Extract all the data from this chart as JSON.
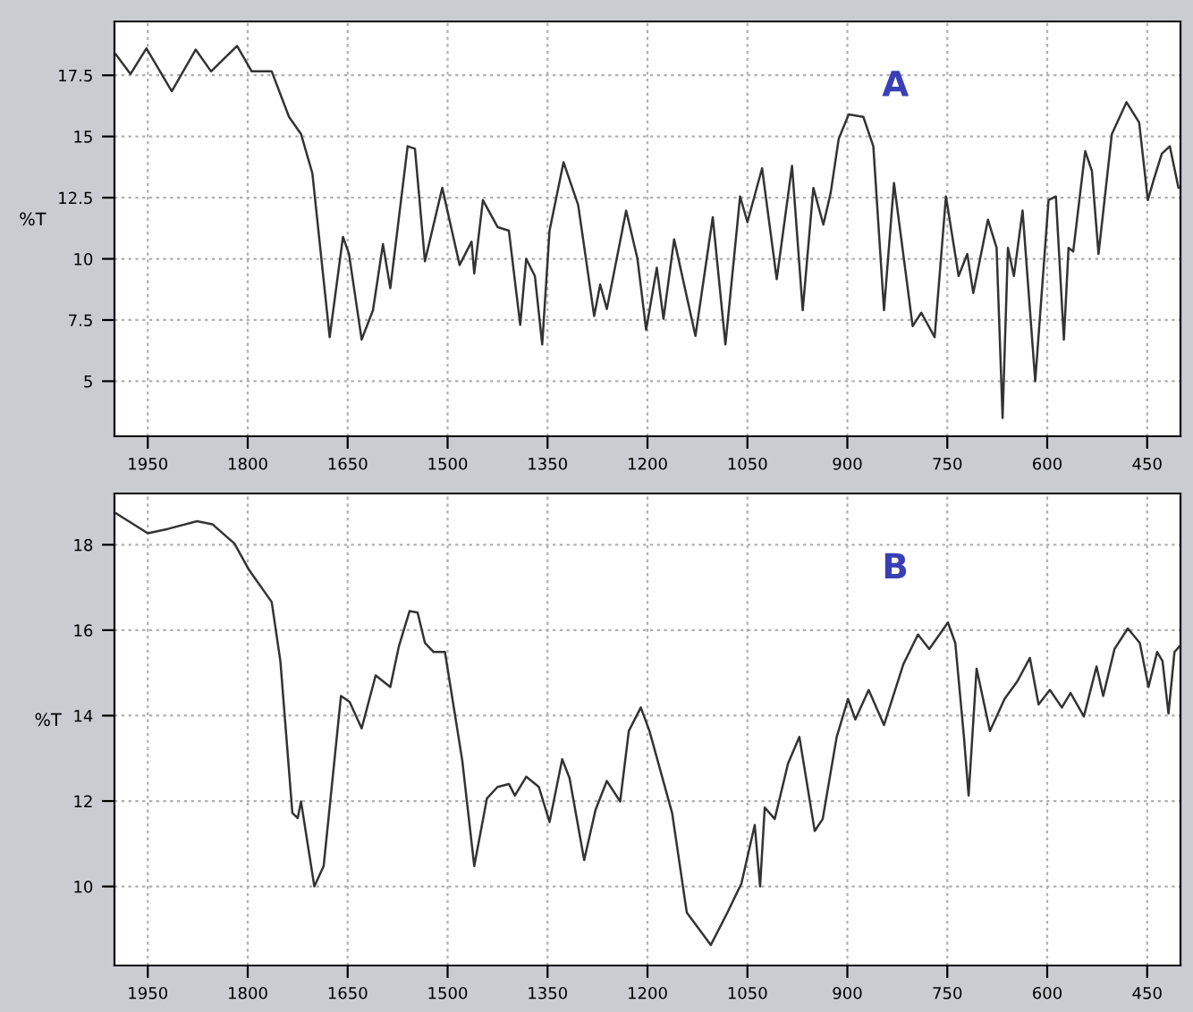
{
  "chart_data": [
    {
      "type": "line",
      "ylabel": "%T",
      "annotations": [
        "A"
      ],
      "xlim": [
        2000,
        400
      ],
      "ylim": [
        2.75,
        19.7
      ],
      "xticks": [
        1950,
        1800,
        1650,
        1500,
        1350,
        1200,
        1050,
        900,
        750,
        600,
        450
      ],
      "yticks": [
        5,
        7.5,
        10,
        12.5,
        15,
        17.5
      ],
      "grid": true,
      "series": [
        {
          "color": "#333333",
          "x": [
            1998,
            1976,
            1952,
            1914,
            1878,
            1855,
            1816,
            1794,
            1764,
            1738,
            1720,
            1703,
            1677,
            1657,
            1648,
            1629,
            1612,
            1597,
            1586,
            1560,
            1549,
            1534,
            1508,
            1482,
            1464,
            1460,
            1447,
            1425,
            1408,
            1391,
            1382,
            1369,
            1358,
            1347,
            1326,
            1304,
            1280,
            1271,
            1261,
            1232,
            1215,
            1202,
            1186,
            1176,
            1160,
            1128,
            1102,
            1083,
            1061,
            1050,
            1028,
            1006,
            983,
            967,
            951,
            936,
            925,
            913,
            898,
            876,
            861,
            845,
            830,
            802,
            789,
            769,
            752,
            733,
            720,
            711,
            689,
            676,
            667,
            659,
            650,
            637,
            618,
            598,
            587,
            575,
            568,
            561,
            543,
            533,
            523,
            503,
            481,
            462,
            449,
            440,
            428,
            416,
            403
          ],
          "values": [
            18.36,
            17.55,
            18.6,
            16.85,
            18.55,
            17.66,
            18.7,
            17.66,
            17.66,
            15.8,
            15.1,
            13.5,
            6.8,
            10.9,
            10.2,
            6.7,
            7.9,
            10.6,
            8.8,
            14.6,
            14.5,
            9.9,
            12.9,
            9.75,
            10.7,
            9.4,
            12.4,
            11.3,
            11.15,
            7.3,
            10.0,
            9.3,
            6.5,
            11.15,
            13.95,
            12.2,
            7.66,
            8.95,
            7.95,
            11.97,
            10.0,
            7.1,
            9.64,
            7.55,
            10.8,
            6.85,
            11.7,
            6.5,
            12.55,
            11.5,
            13.7,
            9.17,
            13.8,
            7.9,
            12.9,
            11.4,
            12.7,
            14.9,
            15.9,
            15.8,
            14.6,
            7.9,
            13.1,
            7.25,
            7.8,
            6.8,
            12.55,
            9.3,
            10.2,
            8.6,
            11.6,
            10.45,
            3.5,
            10.45,
            9.3,
            11.97,
            5.0,
            12.4,
            12.55,
            6.7,
            10.45,
            10.3,
            14.4,
            13.6,
            10.2,
            15.1,
            16.4,
            15.57,
            12.4,
            13.25,
            14.3,
            14.6,
            12.9
          ]
        }
      ]
    },
    {
      "type": "line",
      "ylabel": "%T",
      "annotations": [
        "B"
      ],
      "xlim": [
        2000,
        400
      ],
      "ylim": [
        8.15,
        19.2
      ],
      "xticks": [
        1950,
        1800,
        1650,
        1500,
        1350,
        1200,
        1050,
        900,
        750,
        600,
        450
      ],
      "yticks": [
        10,
        12,
        14,
        16,
        18
      ],
      "grid": true,
      "series": [
        {
          "color": "#333333",
          "x": [
            1998,
            1950,
            1920,
            1876,
            1853,
            1820,
            1798,
            1764,
            1751,
            1733,
            1725,
            1720,
            1700,
            1686,
            1660,
            1647,
            1629,
            1608,
            1586,
            1573,
            1557,
            1545,
            1534,
            1521,
            1504,
            1478,
            1460,
            1441,
            1425,
            1408,
            1399,
            1382,
            1363,
            1347,
            1328,
            1317,
            1295,
            1278,
            1261,
            1241,
            1228,
            1210,
            1197,
            1180,
            1163,
            1141,
            1105,
            1080,
            1059,
            1039,
            1031,
            1024,
            1009,
            989,
            972,
            949,
            937,
            916,
            899,
            888,
            868,
            845,
            816,
            794,
            777,
            749,
            738,
            725,
            718,
            706,
            686,
            664,
            645,
            626,
            613,
            596,
            578,
            565,
            545,
            526,
            516,
            499,
            479,
            461,
            448,
            435,
            427,
            418,
            409,
            401
          ],
          "values": [
            18.74,
            18.27,
            18.37,
            18.55,
            18.48,
            18.03,
            17.41,
            16.66,
            15.28,
            11.72,
            11.6,
            11.99,
            10.0,
            10.48,
            14.46,
            14.32,
            13.7,
            14.94,
            14.67,
            15.63,
            16.45,
            16.41,
            15.7,
            15.49,
            15.49,
            12.95,
            10.48,
            12.06,
            12.33,
            12.4,
            12.13,
            12.57,
            12.33,
            11.51,
            12.98,
            12.54,
            10.62,
            11.79,
            12.47,
            11.99,
            13.64,
            14.19,
            13.64,
            12.68,
            11.72,
            9.39,
            8.63,
            9.39,
            10.07,
            11.44,
            10.0,
            11.85,
            11.58,
            12.88,
            13.5,
            11.3,
            11.58,
            13.5,
            14.39,
            13.91,
            14.6,
            13.78,
            15.2,
            15.9,
            15.56,
            16.18,
            15.7,
            13.5,
            12.13,
            15.1,
            13.64,
            14.39,
            14.8,
            15.35,
            14.26,
            14.6,
            14.19,
            14.53,
            13.98,
            15.15,
            14.46,
            15.56,
            16.04,
            15.7,
            14.67,
            15.49,
            15.28,
            14.05,
            15.49,
            15.63
          ]
        }
      ]
    }
  ]
}
